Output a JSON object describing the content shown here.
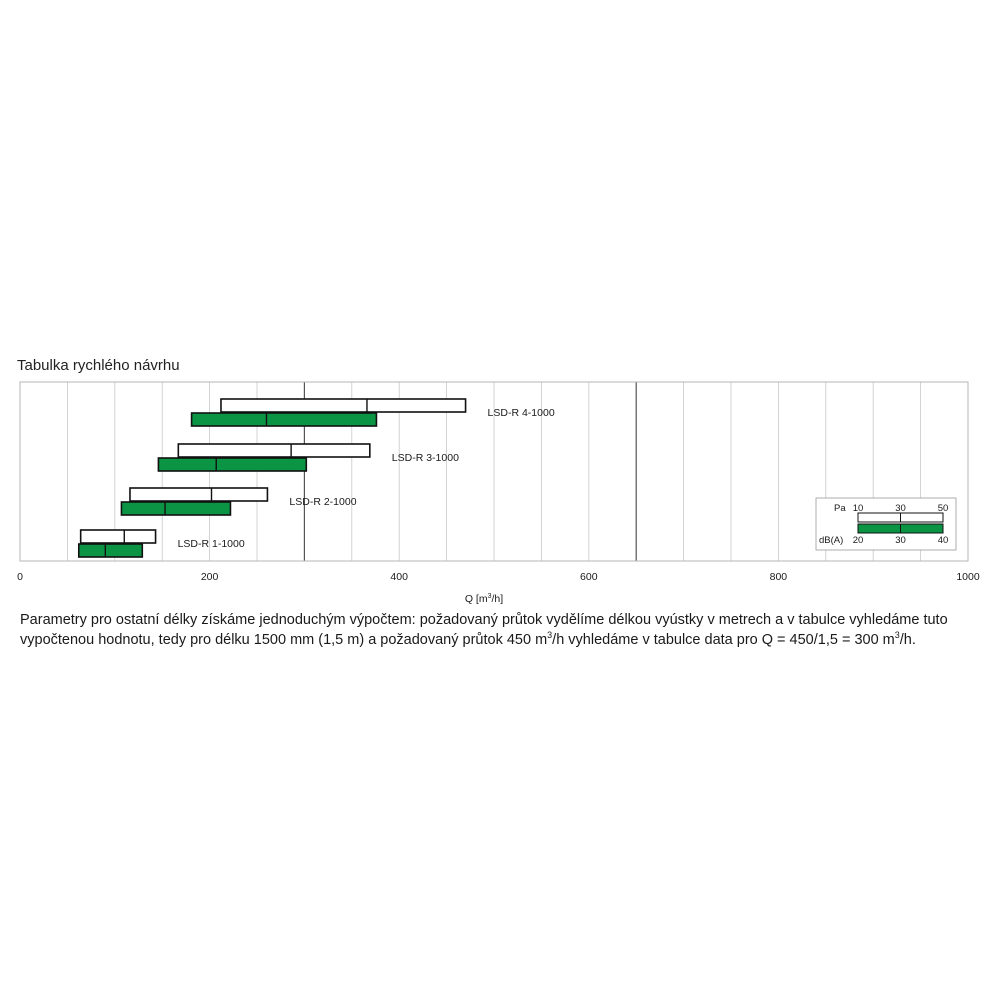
{
  "title": "Tabulka rychlého návrhu",
  "chart_data": {
    "type": "bar",
    "subtype": "range-bars",
    "xlabel_parts": {
      "main": "Q [m",
      "sup": "3",
      "tail": "/h]"
    },
    "xlim": [
      0,
      1000
    ],
    "xticks": [
      0,
      200,
      400,
      600,
      800,
      1000
    ],
    "grid": true,
    "accent_color": "#0a9444",
    "rows": [
      {
        "label": "LSD-R 4-1000",
        "pa": {
          "start": 212,
          "mid": 366,
          "end": 470
        },
        "dba": {
          "start": 181,
          "mid": 260,
          "end": 376
        }
      },
      {
        "label": "LSD-R 3-1000",
        "pa": {
          "start": 167,
          "mid": 286,
          "end": 369
        },
        "dba": {
          "start": 146,
          "mid": 207,
          "end": 302
        }
      },
      {
        "label": "LSD-R 2-1000",
        "pa": {
          "start": 116,
          "mid": 202,
          "end": 261
        },
        "dba": {
          "start": 107,
          "mid": 153,
          "end": 222
        }
      },
      {
        "label": "LSD-R 1-1000",
        "pa": {
          "start": 64,
          "mid": 110,
          "end": 143
        },
        "dba": {
          "start": 62,
          "mid": 90,
          "end": 129
        }
      }
    ],
    "legend": {
      "position": "bottom-right",
      "pa_label": "Pa",
      "pa_ticks": [
        "10",
        "30",
        "50"
      ],
      "dba_label": "dB(A)",
      "dba_ticks": [
        "20",
        "30",
        "40"
      ]
    }
  },
  "description": {
    "line1": "Parametry pro  ostatní délky získáme jednoduchým výpočtem: požadovaný průtok vydělíme délkou vyústky v metrech a v tabulce vyhledáme tuto",
    "line2_a": "vypočtenou hodnotu, tedy pro délku 1500 mm (1,5 m) a požadovaný průtok 450 m",
    "line2_sup1": "3",
    "line2_b": "/h vyhledáme v tabulce data pro Q = 450/1,5 = 300 m",
    "line2_sup2": "3",
    "line2_c": "/h."
  }
}
